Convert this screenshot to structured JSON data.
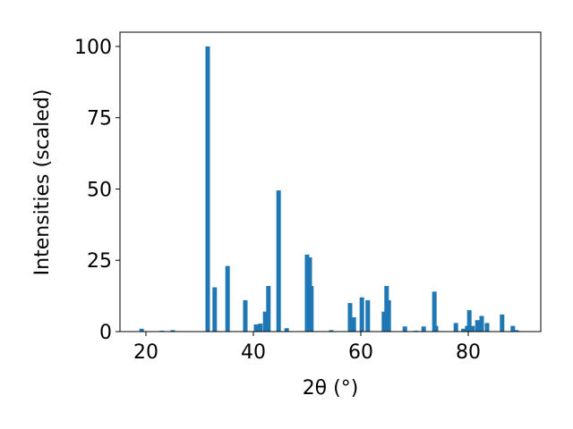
{
  "chart_data": {
    "type": "bar",
    "xlabel": "2θ (°)",
    "ylabel": "Intensities (scaled)",
    "color": "#1f77b4",
    "x": [
      19.2,
      23.0,
      25.0,
      31.5,
      32.8,
      35.2,
      38.5,
      40.5,
      41.3,
      42.2,
      42.8,
      44.7,
      46.2,
      50.0,
      50.5,
      50.8,
      54.5,
      58.0,
      58.7,
      60.2,
      61.3,
      64.3,
      64.8,
      65.2,
      68.2,
      70.3,
      71.7,
      73.7,
      74.0,
      77.7,
      79.1,
      79.8,
      80.2,
      80.8,
      81.7,
      82.5,
      83.5,
      86.3,
      88.3,
      89.0
    ],
    "values": [
      1,
      0.3,
      0.5,
      100,
      15.5,
      23,
      11,
      2.5,
      2.8,
      7,
      16,
      49.5,
      1.2,
      27,
      26,
      16,
      0.5,
      10,
      5,
      12,
      11,
      7,
      16,
      11,
      1.8,
      0.3,
      1.8,
      14,
      2,
      3,
      1,
      2,
      7.5,
      2,
      4,
      5.5,
      3,
      6,
      2,
      0.5
    ],
    "xlim": [
      15.17,
      93.5
    ],
    "ylim": [
      0,
      105
    ],
    "xticks": [
      20,
      40,
      60,
      80
    ],
    "yticks": [
      0,
      25,
      50,
      75,
      100
    ]
  }
}
